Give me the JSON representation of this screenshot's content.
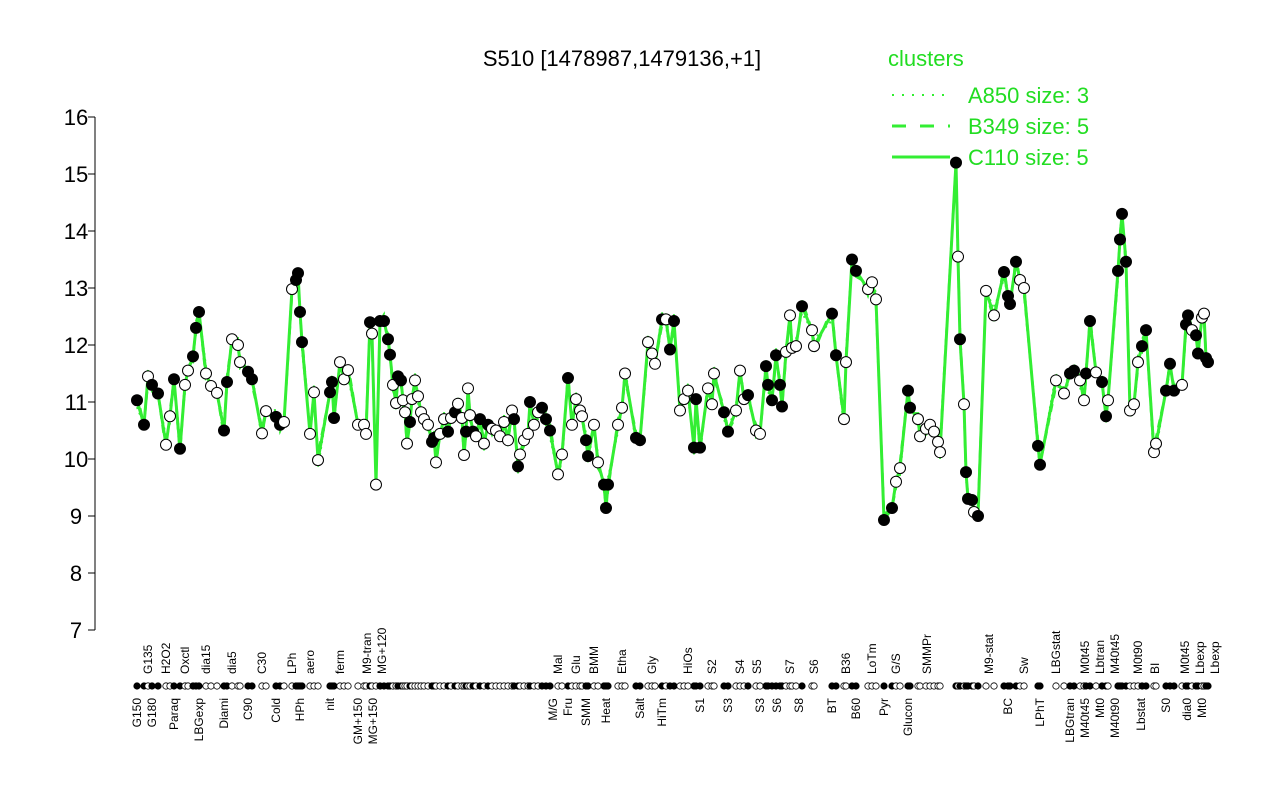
{
  "chart_data": {
    "type": "scatter",
    "title": "S510 [1478987,1479136,+1]",
    "xlabel": "",
    "ylabel": "",
    "ylim": [
      7,
      16
    ],
    "xlim": [
      0,
      268
    ],
    "yticks": [
      "7",
      "8",
      "9",
      "10",
      "11",
      "12",
      "13",
      "14",
      "15",
      "16"
    ],
    "line_color": "#33ee33",
    "legend": {
      "title": "clusters",
      "placement": "top-right",
      "entries": [
        {
          "label": "A850 size: 3",
          "style": "dotted"
        },
        {
          "label": "B349 size: 5",
          "style": "dashed"
        },
        {
          "label": "C110 size: 5",
          "style": "solid"
        }
      ]
    },
    "points": [
      [
        0,
        11.03,
        1
      ],
      [
        1.75,
        10.6,
        1
      ],
      [
        2.75,
        11.45,
        0
      ],
      [
        3.75,
        11.3,
        1
      ],
      [
        5.25,
        11.15,
        1
      ],
      [
        7.25,
        10.25,
        0
      ],
      [
        8.25,
        10.75,
        0
      ],
      [
        9.25,
        11.4,
        1
      ],
      [
        10.75,
        10.18,
        1
      ],
      [
        12,
        11.3,
        0
      ],
      [
        12.75,
        11.55,
        0
      ],
      [
        14,
        11.8,
        1
      ],
      [
        14.75,
        12.3,
        1
      ],
      [
        15.5,
        12.58,
        1
      ],
      [
        17.25,
        11.5,
        0
      ],
      [
        18.5,
        11.28,
        0
      ],
      [
        20,
        11.16,
        0
      ],
      [
        21.75,
        10.5,
        1
      ],
      [
        22.5,
        11.35,
        1
      ],
      [
        23.75,
        12.1,
        0
      ],
      [
        25.25,
        12.0,
        0
      ],
      [
        25.75,
        11.7,
        0
      ],
      [
        27.75,
        11.53,
        1
      ],
      [
        28.75,
        11.4,
        1
      ],
      [
        31.25,
        10.45,
        0
      ],
      [
        32.25,
        10.84,
        0
      ],
      [
        34.75,
        10.74,
        1
      ],
      [
        35.75,
        10.6,
        1
      ],
      [
        36.75,
        10.65,
        0
      ],
      [
        38.75,
        12.98,
        0
      ],
      [
        39.75,
        13.14,
        1
      ],
      [
        40.25,
        13.26,
        1
      ],
      [
        40.75,
        12.58,
        1
      ],
      [
        41.25,
        12.05,
        1
      ],
      [
        43.25,
        10.44,
        0
      ],
      [
        44.25,
        11.17,
        0
      ],
      [
        45.25,
        9.98,
        0
      ],
      [
        48.25,
        11.17,
        1
      ],
      [
        48.75,
        11.35,
        1
      ],
      [
        49.25,
        10.72,
        1
      ],
      [
        50.75,
        11.7,
        0
      ],
      [
        51.75,
        11.4,
        0
      ],
      [
        52.75,
        11.56,
        0
      ],
      [
        55.25,
        10.6,
        0
      ],
      [
        56.75,
        10.6,
        0
      ],
      [
        57.25,
        10.44,
        0
      ],
      [
        58.25,
        12.4,
        1
      ],
      [
        58.75,
        12.2,
        0
      ],
      [
        59.75,
        9.55,
        0
      ],
      [
        60.75,
        12.42,
        1
      ],
      [
        61.75,
        12.42,
        1
      ],
      [
        62.75,
        12.1,
        1
      ],
      [
        63.25,
        11.83,
        1
      ],
      [
        64,
        11.3,
        0
      ],
      [
        64.75,
        10.98,
        0
      ],
      [
        65.25,
        11.45,
        1
      ],
      [
        66,
        11.38,
        1
      ],
      [
        66.5,
        11.03,
        0
      ],
      [
        67,
        10.82,
        0
      ],
      [
        67.5,
        10.27,
        0
      ],
      [
        68.25,
        10.65,
        1
      ],
      [
        68.75,
        11.05,
        0
      ],
      [
        69.5,
        11.38,
        0
      ],
      [
        70.25,
        11.1,
        0
      ],
      [
        71,
        10.82,
        0
      ],
      [
        71.75,
        10.7,
        0
      ],
      [
        72.75,
        10.6,
        0
      ],
      [
        73.75,
        10.3,
        1
      ],
      [
        74.25,
        10.37,
        1
      ],
      [
        74.75,
        9.94,
        0
      ],
      [
        75.75,
        10.44,
        0
      ],
      [
        76.75,
        10.7,
        0
      ],
      [
        77.75,
        10.48,
        1
      ],
      [
        78.5,
        10.72,
        0
      ],
      [
        79.5,
        10.82,
        1
      ],
      [
        80.25,
        10.97,
        0
      ],
      [
        81.25,
        10.72,
        0
      ],
      [
        81.75,
        10.07,
        0
      ],
      [
        82.25,
        10.48,
        1
      ],
      [
        82.75,
        11.24,
        0
      ],
      [
        83.25,
        10.77,
        0
      ],
      [
        84,
        10.48,
        1
      ],
      [
        84.75,
        10.4,
        0
      ],
      [
        85.75,
        10.7,
        1
      ],
      [
        86.75,
        10.27,
        0
      ],
      [
        87.75,
        10.6,
        1
      ],
      [
        88.75,
        10.53,
        0
      ],
      [
        89.75,
        10.5,
        0
      ],
      [
        90.75,
        10.4,
        0
      ],
      [
        91.75,
        10.65,
        0
      ],
      [
        92.75,
        10.33,
        0
      ],
      [
        93.75,
        10.85,
        0
      ],
      [
        94.25,
        10.7,
        1
      ],
      [
        95.25,
        9.87,
        1
      ],
      [
        95.75,
        10.08,
        0
      ],
      [
        96.75,
        10.33,
        0
      ],
      [
        97.75,
        10.44,
        0
      ],
      [
        98.25,
        11.0,
        1
      ],
      [
        99.25,
        10.6,
        0
      ],
      [
        100.25,
        10.82,
        0
      ],
      [
        101.25,
        10.9,
        1
      ],
      [
        102.25,
        10.7,
        1
      ],
      [
        103.25,
        10.5,
        1
      ],
      [
        105.25,
        9.73,
        0
      ],
      [
        106.25,
        10.08,
        0
      ],
      [
        107.75,
        11.42,
        1
      ],
      [
        108.75,
        10.6,
        0
      ],
      [
        109.75,
        11.05,
        0
      ],
      [
        110.75,
        10.85,
        0
      ],
      [
        111.25,
        10.75,
        0
      ],
      [
        112.25,
        10.33,
        1
      ],
      [
        112.75,
        10.05,
        1
      ],
      [
        114.25,
        10.6,
        0
      ],
      [
        115.25,
        9.94,
        0
      ],
      [
        116.75,
        9.55,
        1
      ],
      [
        117.25,
        9.14,
        1
      ],
      [
        117.75,
        9.55,
        1
      ],
      [
        120.25,
        10.6,
        0
      ],
      [
        121.25,
        10.9,
        0
      ],
      [
        122,
        11.5,
        0
      ],
      [
        124.75,
        10.37,
        1
      ],
      [
        125.75,
        10.33,
        1
      ],
      [
        127.75,
        12.05,
        0
      ],
      [
        128.75,
        11.85,
        0
      ],
      [
        129.5,
        11.67,
        0
      ],
      [
        131.25,
        12.45,
        1
      ],
      [
        132.25,
        12.45,
        0
      ],
      [
        133.25,
        11.92,
        1
      ],
      [
        134.25,
        12.42,
        1
      ],
      [
        135.75,
        10.85,
        0
      ],
      [
        136.75,
        11.05,
        0
      ],
      [
        137.75,
        11.2,
        0
      ],
      [
        139.25,
        10.2,
        1
      ],
      [
        139.75,
        11.05,
        1
      ],
      [
        140.75,
        10.2,
        1
      ],
      [
        142.75,
        11.24,
        0
      ],
      [
        143.75,
        10.96,
        0
      ],
      [
        144.25,
        11.5,
        0
      ],
      [
        146.75,
        10.82,
        1
      ],
      [
        147.75,
        10.48,
        1
      ],
      [
        149.75,
        10.85,
        0
      ],
      [
        150.75,
        11.55,
        0
      ],
      [
        151.75,
        11.05,
        0
      ],
      [
        152.75,
        11.12,
        1
      ],
      [
        154.75,
        10.5,
        0
      ],
      [
        155.75,
        10.44,
        0
      ],
      [
        157.25,
        11.63,
        1
      ],
      [
        157.75,
        11.3,
        1
      ],
      [
        158.75,
        11.03,
        1
      ],
      [
        159.75,
        11.82,
        1
      ],
      [
        160.75,
        11.3,
        1
      ],
      [
        161.25,
        10.92,
        1
      ],
      [
        162.25,
        11.88,
        0
      ],
      [
        163.25,
        12.52,
        0
      ],
      [
        163.75,
        11.95,
        0
      ],
      [
        164.75,
        11.98,
        0
      ],
      [
        166.25,
        12.68,
        1
      ],
      [
        168.75,
        12.26,
        0
      ],
      [
        169.25,
        11.98,
        0
      ],
      [
        173.75,
        12.55,
        1
      ],
      [
        174.75,
        11.82,
        1
      ],
      [
        176.75,
        10.7,
        0
      ],
      [
        177.25,
        11.7,
        0
      ],
      [
        178.75,
        13.5,
        1
      ],
      [
        179.75,
        13.3,
        1
      ],
      [
        182.75,
        12.98,
        0
      ],
      [
        183.75,
        13.1,
        0
      ],
      [
        184.75,
        12.8,
        0
      ],
      [
        186.75,
        8.93,
        1
      ],
      [
        188.75,
        9.14,
        1
      ],
      [
        189.75,
        9.6,
        0
      ],
      [
        190.75,
        9.84,
        0
      ],
      [
        192.75,
        11.2,
        1
      ],
      [
        193.25,
        10.9,
        1
      ],
      [
        195.25,
        10.7,
        0
      ],
      [
        195.75,
        10.4,
        0
      ],
      [
        197.25,
        10.53,
        0
      ],
      [
        198.25,
        10.6,
        0
      ],
      [
        199.25,
        10.48,
        0
      ],
      [
        200.25,
        10.3,
        0
      ],
      [
        200.75,
        10.12,
        0
      ],
      [
        204.75,
        15.2,
        1
      ],
      [
        205.25,
        13.55,
        0
      ],
      [
        205.75,
        12.1,
        1
      ],
      [
        206.75,
        10.96,
        0
      ],
      [
        207.25,
        9.77,
        1
      ],
      [
        207.75,
        9.3,
        1
      ],
      [
        208.75,
        9.28,
        1
      ],
      [
        209.25,
        9.07,
        0
      ],
      [
        210.25,
        9.0,
        1
      ],
      [
        212.25,
        12.95,
        0
      ],
      [
        214.25,
        12.52,
        0
      ],
      [
        216.75,
        13.28,
        1
      ],
      [
        217.75,
        12.86,
        1
      ],
      [
        218.25,
        12.72,
        1
      ],
      [
        219.75,
        13.46,
        1
      ],
      [
        220.75,
        13.14,
        0
      ],
      [
        221.75,
        13.0,
        0
      ],
      [
        225.25,
        10.23,
        1
      ],
      [
        225.75,
        9.9,
        1
      ],
      [
        229.75,
        11.38,
        0
      ],
      [
        231.75,
        11.15,
        0
      ],
      [
        233.25,
        11.5,
        1
      ],
      [
        234.25,
        11.55,
        1
      ],
      [
        235.75,
        11.38,
        0
      ],
      [
        236.75,
        11.03,
        0
      ],
      [
        237.25,
        11.5,
        1
      ],
      [
        238.25,
        12.42,
        1
      ],
      [
        239.75,
        11.52,
        0
      ],
      [
        241.25,
        11.35,
        1
      ],
      [
        242.25,
        10.75,
        1
      ],
      [
        242.75,
        11.03,
        0
      ],
      [
        245.25,
        13.3,
        1
      ],
      [
        245.75,
        13.85,
        1
      ],
      [
        246.25,
        14.3,
        1
      ],
      [
        247.25,
        13.46,
        1
      ],
      [
        248.25,
        10.85,
        0
      ],
      [
        249.25,
        10.96,
        0
      ],
      [
        250.25,
        11.7,
        0
      ],
      [
        251.25,
        11.98,
        1
      ],
      [
        252.25,
        12.26,
        1
      ],
      [
        254.25,
        10.12,
        0
      ],
      [
        254.75,
        10.27,
        0
      ],
      [
        257.25,
        11.2,
        1
      ],
      [
        258.25,
        11.67,
        1
      ],
      [
        259.25,
        11.2,
        1
      ],
      [
        261.25,
        11.3,
        0
      ],
      [
        262.25,
        12.36,
        1
      ],
      [
        262.75,
        12.52,
        1
      ],
      [
        263.75,
        12.26,
        0
      ],
      [
        264.75,
        12.17,
        1
      ],
      [
        265.25,
        11.85,
        1
      ],
      [
        266.25,
        12.48,
        0
      ],
      [
        266.75,
        12.55,
        0
      ],
      [
        267.25,
        11.77,
        1
      ],
      [
        267.75,
        11.7,
        1
      ]
    ],
    "xlabels_top": [
      {
        "x": 2.75,
        "t": "G135"
      },
      {
        "x": 7.25,
        "t": "H2O2"
      },
      {
        "x": 12,
        "t": "Oxctl"
      },
      {
        "x": 17.25,
        "t": "dia15"
      },
      {
        "x": 23.75,
        "t": "dia5"
      },
      {
        "x": 31.25,
        "t": "C30"
      },
      {
        "x": 38.75,
        "t": "LPh"
      },
      {
        "x": 43.25,
        "t": "aero"
      },
      {
        "x": 50.75,
        "t": "ferm"
      },
      {
        "x": 57.5,
        "t": "M9-tran"
      },
      {
        "x": 59.75,
        "t": "MG+120"
      },
      {
        "x": 105.25,
        "t": "Mal"
      },
      {
        "x": 109.75,
        "t": "Glu"
      },
      {
        "x": 114.25,
        "t": "BMM"
      },
      {
        "x": 121.25,
        "t": "Etha"
      },
      {
        "x": 128.75,
        "t": "Gly"
      },
      {
        "x": 137.75,
        "t": "HiOs"
      },
      {
        "x": 143.75,
        "t": "S2"
      },
      {
        "x": 150.75,
        "t": "S4"
      },
      {
        "x": 155,
        "t": "S5"
      },
      {
        "x": 163.25,
        "t": "S7"
      },
      {
        "x": 169.25,
        "t": "S6"
      },
      {
        "x": 177.25,
        "t": "B36"
      },
      {
        "x": 183.75,
        "t": "LoTm"
      },
      {
        "x": 189.75,
        "t": "G/S"
      },
      {
        "x": 197.5,
        "t": "SMMPr"
      },
      {
        "x": 213,
        "t": "M9-stat"
      },
      {
        "x": 221.75,
        "t": "Sw"
      },
      {
        "x": 229.75,
        "t": "LBGstat"
      },
      {
        "x": 237,
        "t": "M0t45"
      },
      {
        "x": 239.5,
        "t": "Lbtran"
      },
      {
        "x": 241.5,
        "t": "M40t45"
      },
      {
        "x": 250.25,
        "t": "M0t90"
      },
      {
        "x": 254.5,
        "t": "BI"
      },
      {
        "x": 262,
        "t": "M0t45"
      },
      {
        "x": 264.5,
        "t": "Lbexp"
      },
      {
        "x": 266,
        "t": "Lbexp"
      }
    ],
    "xlabels_bottom": [
      {
        "x": 0,
        "t": "G150"
      },
      {
        "x": 3.75,
        "t": "G180"
      },
      {
        "x": 9.25,
        "t": "Paraq"
      },
      {
        "x": 15.5,
        "t": "LBGexp"
      },
      {
        "x": 21.75,
        "t": "Diami"
      },
      {
        "x": 27.75,
        "t": "C90"
      },
      {
        "x": 34.75,
        "t": "Cold"
      },
      {
        "x": 40.75,
        "t": "HPh"
      },
      {
        "x": 48.25,
        "t": "nit"
      },
      {
        "x": 55.25,
        "t": "GM+150"
      },
      {
        "x": 57.25,
        "t": "MG+150"
      },
      {
        "x": 104,
        "t": "M/G"
      },
      {
        "x": 107.75,
        "t": "Fru"
      },
      {
        "x": 112.25,
        "t": "SMM"
      },
      {
        "x": 117.25,
        "t": "Heat"
      },
      {
        "x": 125.75,
        "t": "Salt"
      },
      {
        "x": 131.25,
        "t": "HiTm"
      },
      {
        "x": 140.75,
        "t": "S1"
      },
      {
        "x": 147.75,
        "t": "S3"
      },
      {
        "x": 155.75,
        "t": "S3"
      },
      {
        "x": 160,
        "t": "S6"
      },
      {
        "x": 165.5,
        "t": "S8"
      },
      {
        "x": 173.75,
        "t": "BT"
      },
      {
        "x": 179.75,
        "t": "B60"
      },
      {
        "x": 186.75,
        "t": "Pyr"
      },
      {
        "x": 192.75,
        "t": "Glucon"
      },
      {
        "x": 217.75,
        "t": "BC"
      },
      {
        "x": 225.75,
        "t": "LPhT"
      },
      {
        "x": 233.25,
        "t": "LBGtran"
      },
      {
        "x": 236,
        "t": "M40t45"
      },
      {
        "x": 240.5,
        "t": "Mt0"
      },
      {
        "x": 242.5,
        "t": "M40t90"
      },
      {
        "x": 251,
        "t": "Lbstat"
      },
      {
        "x": 257.25,
        "t": "S0"
      },
      {
        "x": 262.5,
        "t": "dia0"
      },
      {
        "x": 264.5,
        "t": "Mt0"
      }
    ]
  }
}
